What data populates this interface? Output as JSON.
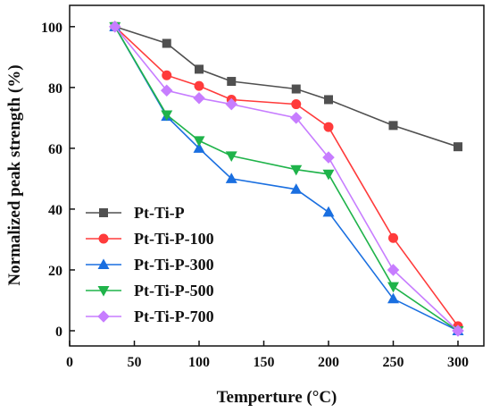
{
  "chart_data": {
    "type": "line",
    "xlabel": "Temperture (°C)",
    "ylabel": "Normalized peak strength (%)",
    "xlim": [
      0,
      320
    ],
    "ylim": [
      -5,
      107
    ],
    "xticks": [
      0,
      50,
      100,
      150,
      200,
      250,
      300
    ],
    "yticks": [
      0,
      20,
      40,
      60,
      80,
      100
    ],
    "legend_position": "bottom-left",
    "grid": false,
    "series": [
      {
        "name": "Pt-Ti-P",
        "color": "#505050",
        "marker": "square",
        "x": [
          35,
          75,
          100,
          125,
          175,
          200,
          250,
          300
        ],
        "y": [
          100,
          94.5,
          86,
          82,
          79.5,
          76,
          67.5,
          60.5
        ]
      },
      {
        "name": "Pt-Ti-P-100",
        "color": "#ff3b3b",
        "marker": "circle",
        "x": [
          35,
          75,
          100,
          125,
          175,
          200,
          250,
          300
        ],
        "y": [
          100,
          84,
          80.5,
          76,
          74.5,
          67,
          30.5,
          1.5
        ]
      },
      {
        "name": "Pt-Ti-P-300",
        "color": "#1a6fe0",
        "marker": "triangle-up",
        "x": [
          35,
          75,
          100,
          125,
          175,
          200,
          250,
          300
        ],
        "y": [
          100,
          70.5,
          60,
          50,
          46.5,
          39,
          10.5,
          0
        ]
      },
      {
        "name": "Pt-Ti-P-500",
        "color": "#1fb34a",
        "marker": "triangle-down",
        "x": [
          35,
          75,
          100,
          125,
          175,
          200,
          250,
          300
        ],
        "y": [
          100,
          71,
          62.5,
          57.5,
          53,
          51.5,
          14.5,
          0
        ]
      },
      {
        "name": "Pt-Ti-P-700",
        "color": "#c77dff",
        "marker": "diamond",
        "x": [
          35,
          75,
          100,
          125,
          175,
          200,
          250,
          300
        ],
        "y": [
          100,
          79,
          76.5,
          74.5,
          70,
          57,
          20,
          0
        ]
      }
    ]
  }
}
